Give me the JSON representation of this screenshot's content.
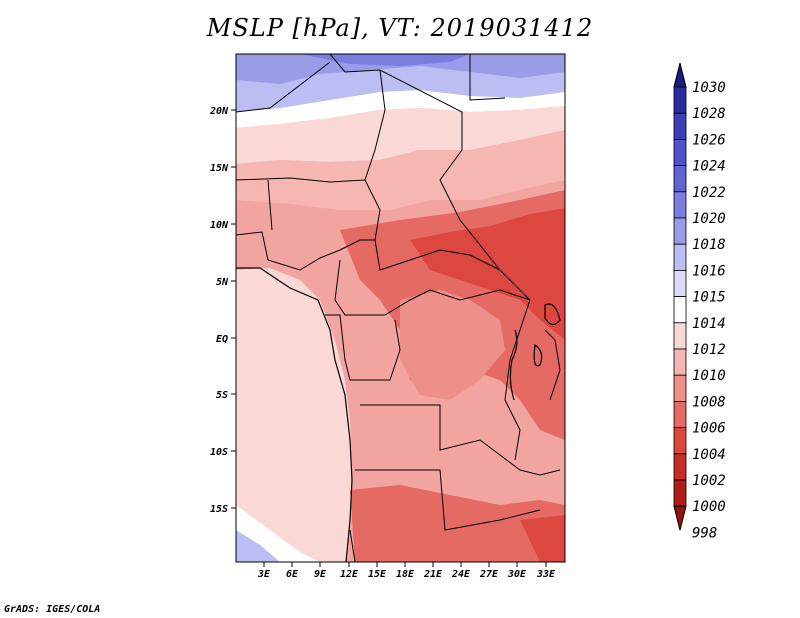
{
  "title": "MSLP [hPa], VT: 2019031412",
  "credit": "GrADS: IGES/COLA",
  "lat_labels": [
    "20N",
    "15N",
    "10N",
    "5N",
    "EQ",
    "5S",
    "10S",
    "15S"
  ],
  "lon_labels": [
    "3E",
    "6E",
    "9E",
    "12E",
    "15E",
    "18E",
    "21E",
    "24E",
    "27E",
    "30E",
    "33E"
  ],
  "colorbar": {
    "labels": [
      "1030",
      "1028",
      "1026",
      "1024",
      "1022",
      "1020",
      "1018",
      "1016",
      "1015",
      "1014",
      "1012",
      "1010",
      "1008",
      "1006",
      "1004",
      "1002",
      "1000",
      "998"
    ],
    "colors": [
      "#1c1882",
      "#2a2ca2",
      "#3b3fb8",
      "#4d52c9",
      "#6264d6",
      "#7a7de0",
      "#9a9ce9",
      "#bcbdf2",
      "#dcdcf9",
      "#ffffff",
      "#fad8d6",
      "#f6b6b2",
      "#ee908a",
      "#e56a63",
      "#dc4840",
      "#c92c26",
      "#b01c17",
      "#951410"
    ]
  }
}
